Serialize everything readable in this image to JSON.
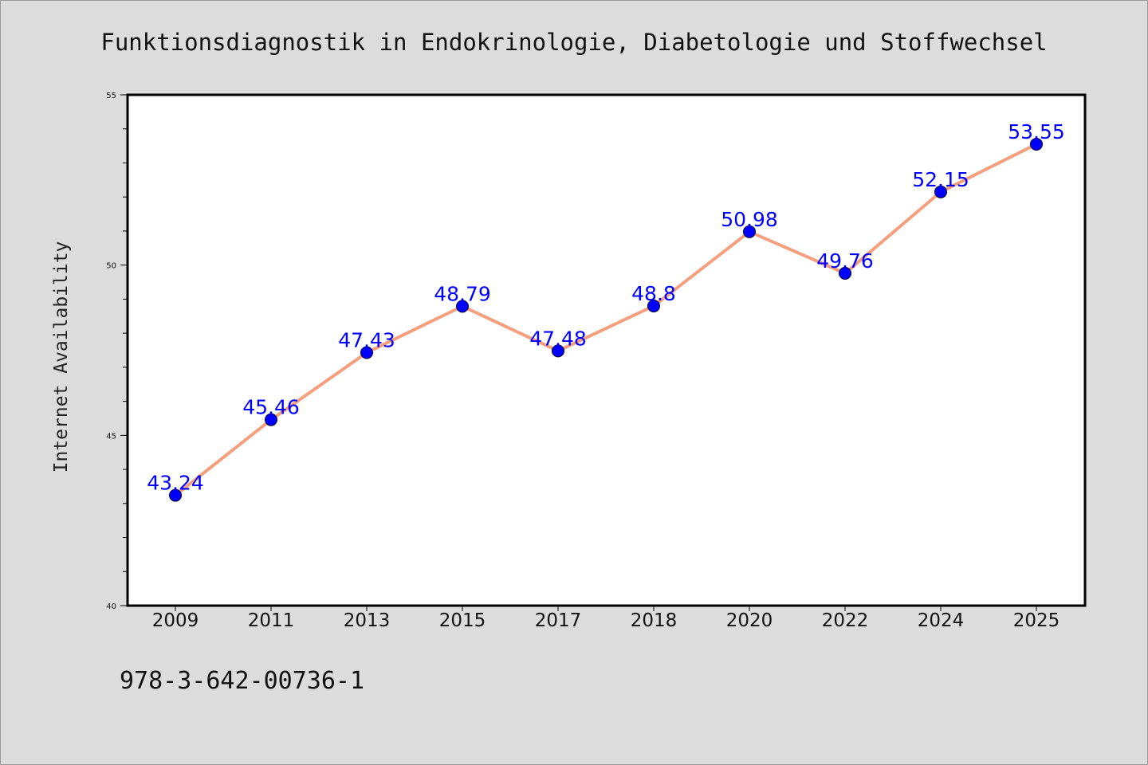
{
  "chart_data": {
    "type": "line",
    "title": "Funktionsdiagnostik in Endokrinologie, Diabetologie und Stoffwechsel",
    "ylabel": "Internet Availability",
    "categories": [
      "2009",
      "2011",
      "2013",
      "2015",
      "2017",
      "2018",
      "2020",
      "2022",
      "2024",
      "2025"
    ],
    "series": [
      {
        "values": [
          43.24,
          45.46,
          47.43,
          48.79,
          47.48,
          48.8,
          50.98,
          49.76,
          52.15,
          53.55
        ],
        "data_labels": [
          "43.24",
          "45.46",
          "47.43",
          "48.79",
          "47.48",
          "48.8",
          "50.98",
          "49.76",
          "52.15",
          "53.55"
        ]
      }
    ],
    "ylim": [
      40,
      55
    ],
    "yticks": [
      40,
      45,
      50,
      55
    ],
    "grid": false,
    "line_color": "#f4a07e",
    "marker_color": "#0000ff",
    "label_color": "#0000ff"
  },
  "footer": {
    "text": "978-3-642-00736-1"
  }
}
